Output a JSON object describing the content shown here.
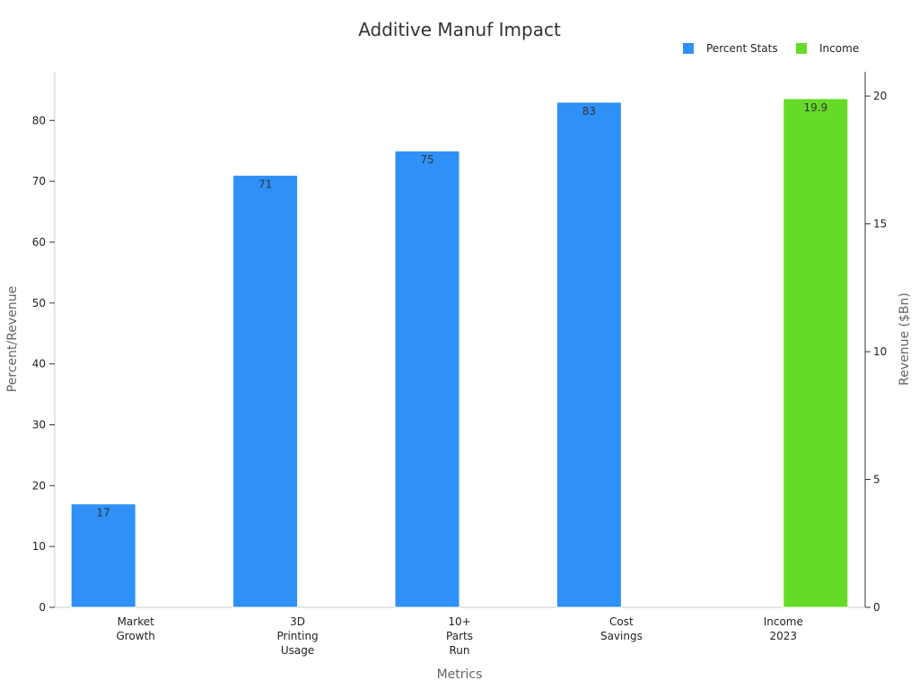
{
  "chart_data": {
    "type": "bar",
    "title": "Additive Manuf Impact",
    "xlabel": "Metrics",
    "ylabel": "Percent/Revenue",
    "y2label": "Revenue ($Bn)",
    "categories": [
      [
        "Market",
        "Growth"
      ],
      [
        "3D",
        "Printing",
        "Usage"
      ],
      [
        "10+",
        "Parts",
        "Run"
      ],
      [
        "Cost",
        "Savings"
      ],
      [
        "Income",
        "2023"
      ]
    ],
    "series": [
      {
        "name": "Percent Stats",
        "axis": "left",
        "color": "#2f90f8",
        "values": [
          17,
          71,
          75,
          83,
          null
        ]
      },
      {
        "name": "Income",
        "axis": "right",
        "color": "#66db27",
        "values": [
          null,
          null,
          null,
          null,
          19.9
        ]
      }
    ],
    "ylim": [
      0,
      88
    ],
    "yticks": [
      0,
      10,
      20,
      30,
      40,
      50,
      60,
      70,
      80
    ],
    "y2lim": [
      0,
      20.95
    ],
    "y2ticks": [
      0,
      5,
      10,
      15,
      20
    ],
    "legend_position": "top-right",
    "grid": false
  }
}
